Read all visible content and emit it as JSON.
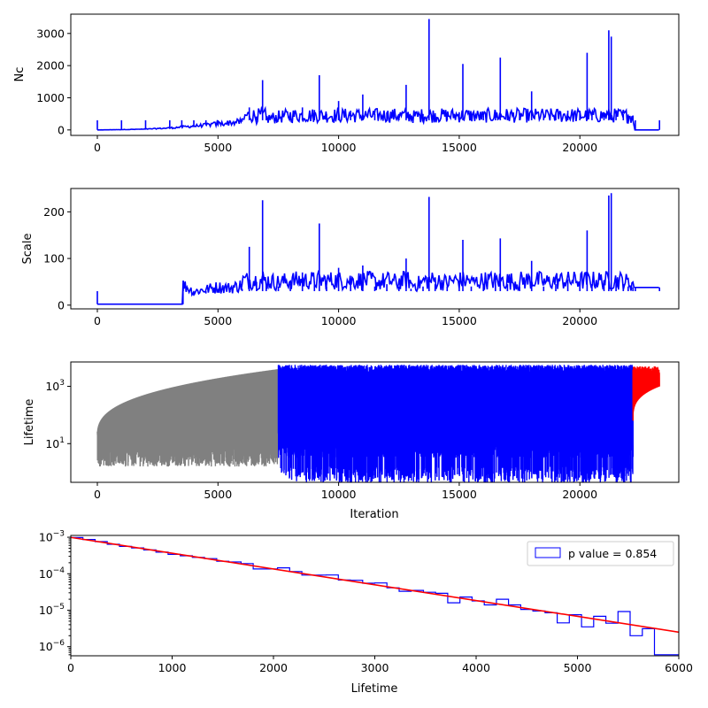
{
  "chart_data": [
    {
      "type": "line",
      "xlabel": "",
      "ylabel": "Nc",
      "xlim": [
        -1100,
        24100
      ],
      "ylim": [
        -170,
        3600
      ],
      "x_ticks": [
        0,
        5000,
        10000,
        15000,
        20000
      ],
      "y_ticks": [
        0,
        1000,
        2000,
        3000
      ],
      "series": [
        {
          "color": "#0000ff",
          "x": [
            0,
            1000,
            2000,
            3000,
            3500,
            4000,
            4500,
            5000,
            5500,
            6000,
            6300,
            6600,
            6850,
            7000,
            7500,
            8000,
            8500,
            9000,
            9200,
            9500,
            10000,
            10500,
            11000,
            11500,
            12000,
            12500,
            12800,
            13000,
            13500,
            13750,
            14000,
            14500,
            15000,
            15150,
            15500,
            16000,
            16500,
            16700,
            17000,
            17500,
            18000,
            18500,
            19000,
            19500,
            20000,
            20300,
            20500,
            21000,
            21200,
            21300,
            21500,
            21800,
            22000,
            22200,
            22300,
            23300
          ],
          "y": [
            0,
            10,
            25,
            60,
            90,
            120,
            150,
            190,
            220,
            260,
            700,
            420,
            1550,
            380,
            450,
            500,
            700,
            620,
            1700,
            500,
            900,
            600,
            1100,
            500,
            550,
            500,
            1400,
            450,
            500,
            3450,
            520,
            500,
            550,
            2050,
            500,
            450,
            600,
            2250,
            520,
            500,
            1200,
            480,
            520,
            600,
            550,
            2400,
            500,
            550,
            3100,
            2900,
            550,
            500,
            480,
            450,
            0,
            0
          ]
        }
      ]
    },
    {
      "type": "line",
      "xlabel": "",
      "ylabel": "Scale",
      "xlim": [
        -1100,
        24100
      ],
      "ylim": [
        -8,
        250
      ],
      "x_ticks": [
        0,
        5000,
        10000,
        15000,
        20000
      ],
      "y_ticks": [
        0,
        100,
        200
      ],
      "series": [
        {
          "color": "#0000ff",
          "x": [
            0,
            3550,
            3560,
            4000,
            4500,
            5000,
            5500,
            6000,
            6300,
            6600,
            6850,
            7000,
            7500,
            8000,
            8500,
            9000,
            9200,
            9500,
            10000,
            10500,
            11000,
            11500,
            12000,
            12500,
            12800,
            13000,
            13500,
            13750,
            14000,
            14500,
            15000,
            15150,
            15500,
            16000,
            16500,
            16700,
            17000,
            17500,
            18000,
            18500,
            19000,
            19500,
            20000,
            20300,
            20500,
            21000,
            21200,
            21300,
            21500,
            21800,
            22000,
            22200,
            22300,
            23300
          ],
          "y": [
            2,
            2,
            35,
            20,
            25,
            30,
            28,
            35,
            125,
            50,
            225,
            45,
            40,
            45,
            70,
            50,
            175,
            40,
            80,
            50,
            85,
            40,
            45,
            40,
            100,
            35,
            40,
            232,
            45,
            40,
            50,
            140,
            40,
            45,
            60,
            143,
            45,
            40,
            95,
            40,
            45,
            55,
            50,
            160,
            45,
            50,
            235,
            240,
            50,
            45,
            40,
            38,
            38,
            38
          ]
        }
      ]
    },
    {
      "type": "line",
      "xlabel": "Iteration",
      "ylabel": "Lifetime",
      "yscale": "log",
      "xlim": [
        -1100,
        24100
      ],
      "ylim_log10": [
        -0.35,
        3.85
      ],
      "x_ticks": [
        0,
        5000,
        10000,
        15000,
        20000
      ],
      "y_tick_exponents": [
        1,
        3
      ],
      "series": [
        {
          "color": "#808080",
          "x_range": [
            0,
            7500
          ]
        },
        {
          "color": "#0000ff",
          "x_range": [
            7500,
            22200
          ]
        },
        {
          "color": "#ff0000",
          "x_range": [
            22200,
            23300
          ]
        }
      ]
    },
    {
      "type": "histogram",
      "xlabel": "Lifetime",
      "ylabel": "",
      "yscale": "log",
      "xlim": [
        0,
        6000
      ],
      "ylim_log10": [
        -6.25,
        -2.95
      ],
      "x_ticks": [
        0,
        1000,
        2000,
        3000,
        4000,
        5000,
        6000
      ],
      "y_tick_exponents": [
        -3,
        -4,
        -5,
        -6
      ],
      "bin_edges": [
        0,
        120,
        240,
        360,
        480,
        600,
        720,
        840,
        960,
        1080,
        1200,
        1320,
        1440,
        1560,
        1680,
        1800,
        1920,
        2040,
        2160,
        2280,
        2400,
        2520,
        2640,
        2760,
        2880,
        3000,
        3120,
        3240,
        3360,
        3480,
        3600,
        3720,
        3840,
        3960,
        4080,
        4200,
        4320,
        4440,
        4560,
        4680,
        4800,
        4920,
        5040,
        5160,
        5280,
        5400,
        5520,
        5640,
        5760,
        6000
      ],
      "counts": [
        0.00098,
        0.00087,
        0.00076,
        0.00064,
        0.00056,
        0.00051,
        0.00045,
        0.00039,
        0.00034,
        0.00031,
        0.00028,
        0.00026,
        0.00022,
        0.00021,
        0.00019,
        0.000135,
        0.000135,
        0.000145,
        0.000115,
        9.16e-05,
        9.16e-05,
        9.24e-05,
        6.7e-05,
        6.6e-05,
        5.5e-05,
        5.6e-05,
        4.1e-05,
        3.3e-05,
        3.5e-05,
        3.1e-05,
        2.9e-05,
        1.6e-05,
        2.3e-05,
        1.8e-05,
        1.4e-05,
        2e-05,
        1.4e-05,
        1.05e-05,
        9.5e-06,
        8.5e-06,
        4.5e-06,
        7.5e-06,
        3.5e-06,
        6.8e-06,
        4.4e-06,
        9.2e-06,
        2e-06,
        3.1e-06,
        6e-07
      ],
      "fit": {
        "color": "#ff0000",
        "x": [
          0,
          6000
        ],
        "y": [
          0.00099,
          2.5e-06
        ]
      },
      "hist_color": "#0000ff",
      "legend": {
        "label": "p value = 0.854",
        "loc": "upper right"
      }
    }
  ]
}
